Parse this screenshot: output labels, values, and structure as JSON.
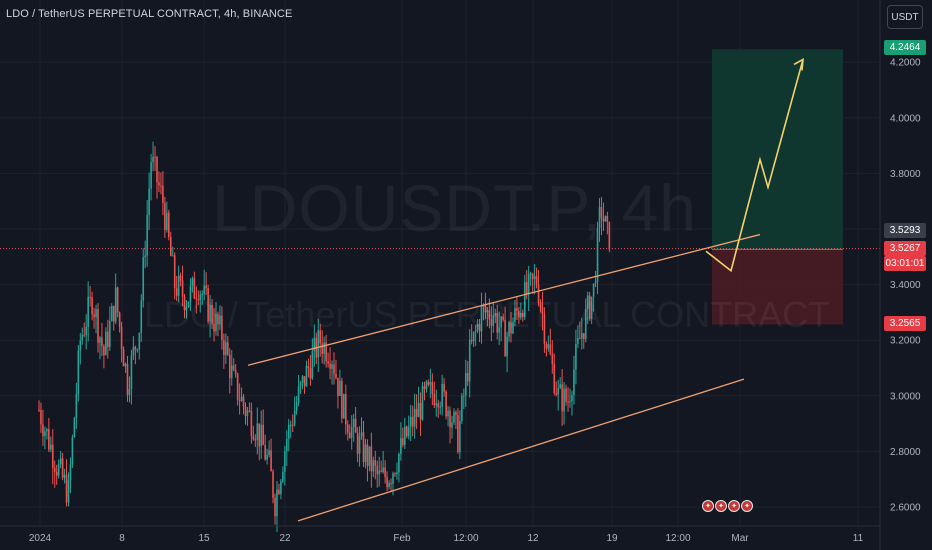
{
  "header": {
    "title": "LDO / TetherUS PERPETUAL CONTRACT, 4h, BINANCE",
    "currency": "USDT"
  },
  "watermark": {
    "symbol": "LDOUSDT.P, 4h",
    "name": "LDO / TetherUS PERPETUAL CONTRACT"
  },
  "price_axis": {
    "ticks": [
      "4.2000",
      "4.0000",
      "3.8000",
      "3.6000",
      "3.4000",
      "3.2000",
      "3.0000",
      "2.8000",
      "2.6000"
    ]
  },
  "time_axis": {
    "labels": [
      "2024",
      "8",
      "15",
      "22",
      "Feb",
      "12:00",
      "12",
      "19",
      "12:00",
      "Mar",
      "11"
    ]
  },
  "price_tags": {
    "target": "4.2464",
    "close_a": "3.5293",
    "last": "3.5267",
    "countdown": "03:01:01",
    "stop": "3.2565"
  },
  "colors": {
    "background": "#131722",
    "up": "#26a69a",
    "down": "#ef5350",
    "channel": "#f0a070",
    "projection": "#f5d26b",
    "profit_zone": "#0f3a31",
    "loss_zone": "#4a1c24"
  },
  "chart_data": {
    "type": "candlestick",
    "symbol": "LDOUSDT.P",
    "timeframe": "4h",
    "exchange": "BINANCE",
    "ylim": [
      2.55,
      4.36
    ],
    "last_price": 3.5267,
    "dotted_line": 3.5293,
    "position": {
      "entry": 3.5267,
      "target": 4.2464,
      "stop": 3.2565
    },
    "channel": {
      "upper": [
        {
          "x": "Jan 23",
          "y": 3.11
        },
        {
          "x": "Feb 27",
          "y": 3.58
        }
      ],
      "lower": [
        {
          "x": "Jan 23",
          "y": 2.55
        },
        {
          "x": "Feb 28",
          "y": 3.06
        }
      ]
    },
    "projection_path": [
      {
        "x": "Feb 25",
        "y": 3.52
      },
      {
        "x": "Feb 26",
        "y": 3.45
      },
      {
        "x": "Feb 27",
        "y": 3.85
      },
      {
        "x": "Feb 27",
        "y": 3.75
      },
      {
        "x": "Feb 28",
        "y": 4.21
      }
    ],
    "trend_path": [
      {
        "d": 0,
        "p": 2.95
      },
      {
        "d": 1.5,
        "p": 2.75
      },
      {
        "d": 2.5,
        "p": 2.65
      },
      {
        "d": 3.5,
        "p": 3.2
      },
      {
        "d": 4.5,
        "p": 3.35
      },
      {
        "d": 5.5,
        "p": 3.15
      },
      {
        "d": 6.5,
        "p": 3.35
      },
      {
        "d": 7.5,
        "p": 3.05
      },
      {
        "d": 8.5,
        "p": 3.25
      },
      {
        "d": 9.5,
        "p": 3.85
      },
      {
        "d": 10.5,
        "p": 3.7
      },
      {
        "d": 11.5,
        "p": 3.4
      },
      {
        "d": 12.5,
        "p": 3.35
      },
      {
        "d": 13.5,
        "p": 3.4
      },
      {
        "d": 14.5,
        "p": 3.3
      },
      {
        "d": 15.5,
        "p": 3.22
      },
      {
        "d": 16.5,
        "p": 3.05
      },
      {
        "d": 17.5,
        "p": 2.95
      },
      {
        "d": 18.5,
        "p": 2.88
      },
      {
        "d": 19.5,
        "p": 2.75
      },
      {
        "d": 20,
        "p": 2.62
      },
      {
        "d": 21,
        "p": 2.85
      },
      {
        "d": 22,
        "p": 3.0
      },
      {
        "d": 23,
        "p": 3.12
      },
      {
        "d": 23.8,
        "p": 3.2
      },
      {
        "d": 24.8,
        "p": 3.15
      },
      {
        "d": 25.8,
        "p": 2.95
      },
      {
        "d": 26.8,
        "p": 2.85
      },
      {
        "d": 27.8,
        "p": 2.78
      },
      {
        "d": 28.8,
        "p": 2.7
      },
      {
        "d": 29.8,
        "p": 2.72
      },
      {
        "d": 30.8,
        "p": 2.82
      },
      {
        "d": 31.8,
        "p": 2.92
      },
      {
        "d": 32.8,
        "p": 3.0
      },
      {
        "d": 33.8,
        "p": 3.02
      },
      {
        "d": 34.8,
        "p": 2.95
      },
      {
        "d": 35.5,
        "p": 2.85
      },
      {
        "d": 36.5,
        "p": 3.15
      },
      {
        "d": 37.5,
        "p": 3.3
      },
      {
        "d": 38.5,
        "p": 3.3
      },
      {
        "d": 39.5,
        "p": 3.2
      },
      {
        "d": 40.5,
        "p": 3.3
      },
      {
        "d": 41.5,
        "p": 3.38
      },
      {
        "d": 42.2,
        "p": 3.42
      },
      {
        "d": 43,
        "p": 3.2
      },
      {
        "d": 44,
        "p": 3.0
      },
      {
        "d": 44.8,
        "p": 2.98
      },
      {
        "d": 45.8,
        "p": 3.2
      },
      {
        "d": 47,
        "p": 3.38
      },
      {
        "d": 47.6,
        "p": 3.68
      },
      {
        "d": 48.4,
        "p": 3.53
      }
    ]
  }
}
